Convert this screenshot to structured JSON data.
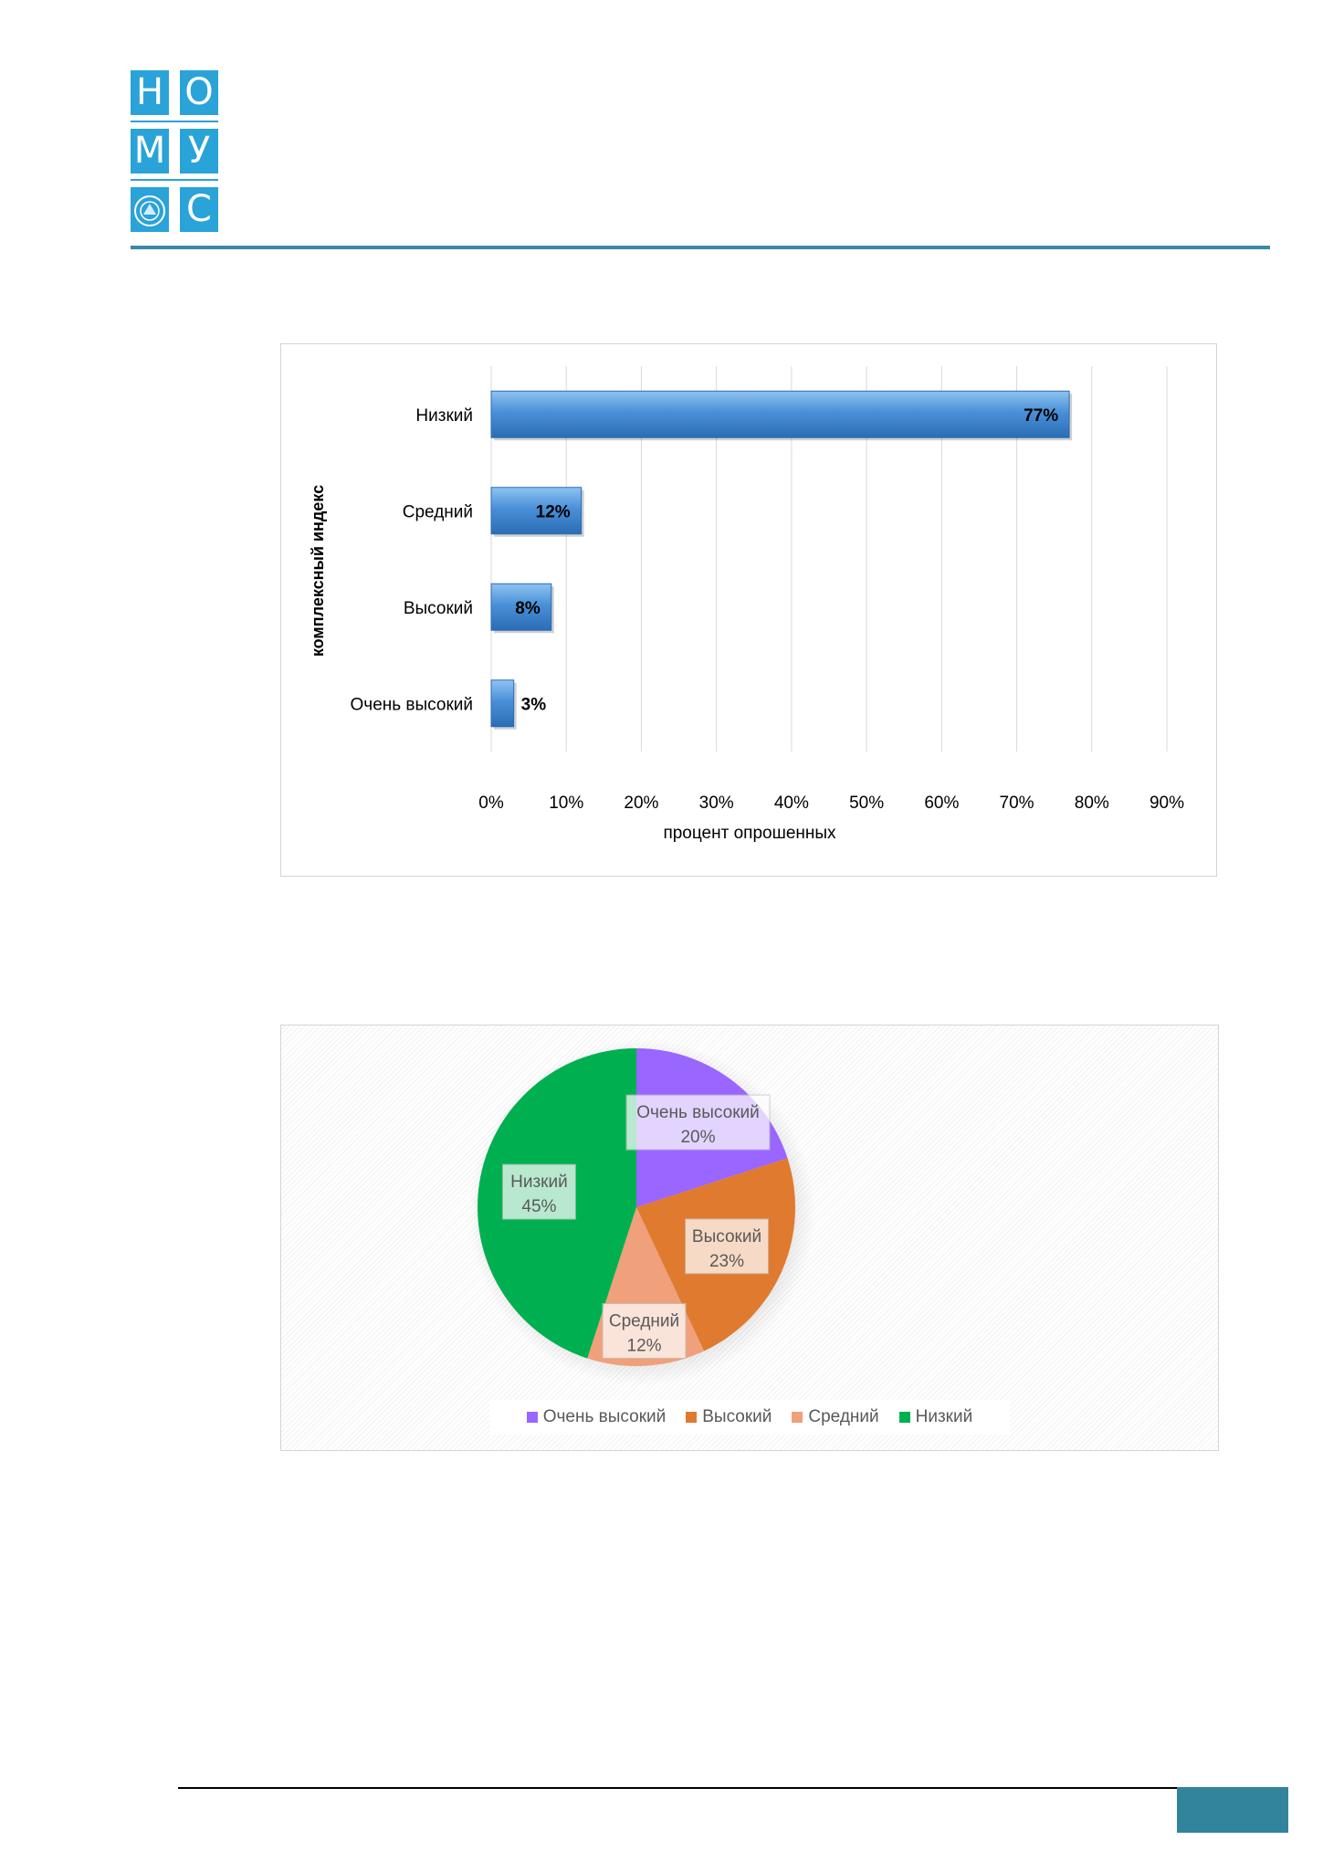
{
  "logo": {
    "letters": [
      "Н",
      "О",
      "М",
      "У",
      "",
      "С"
    ],
    "emblem": "city-seal-icon"
  },
  "bar_chart": {
    "type": "bar",
    "orientation": "horizontal",
    "categories": [
      "Низкий",
      "Средний",
      "Высокий",
      "Очень высокий"
    ],
    "values": [
      77,
      12,
      8,
      3
    ],
    "data_labels": [
      "77%",
      "12%",
      "8%",
      "3%"
    ],
    "xlabel": "процент опрошенных",
    "ylabel": "комплексный индекс",
    "xlim": [
      0,
      90
    ],
    "xticks": [
      "0%",
      "10%",
      "20%",
      "30%",
      "40%",
      "50%",
      "60%",
      "70%",
      "80%",
      "90%"
    ],
    "grid": true,
    "color": "#4a90d8"
  },
  "pie_chart": {
    "type": "pie",
    "slices": [
      {
        "label": "Очень высокий",
        "value": 20,
        "pct": "20%",
        "color": "#9966ff"
      },
      {
        "label": "Высокий",
        "value": 23,
        "pct": "23%",
        "color": "#e07a2f"
      },
      {
        "label": "Средний",
        "value": 12,
        "pct": "12%",
        "color": "#f0a07a"
      },
      {
        "label": "Низкий",
        "value": 45,
        "pct": "45%",
        "color": "#00b050"
      }
    ],
    "legend": [
      "Очень высокий",
      "Высокий",
      "Средний",
      "Низкий"
    ],
    "legend_position": "bottom"
  }
}
